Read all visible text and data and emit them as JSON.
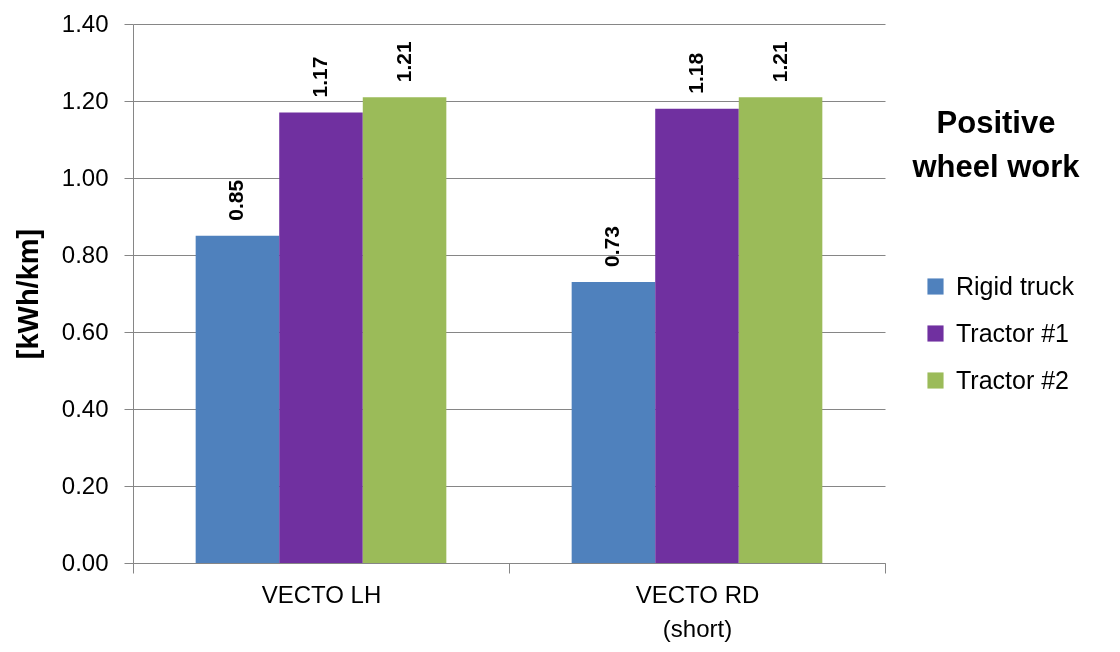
{
  "chart_data": {
    "type": "bar",
    "title": "Positive\nwheel work",
    "ylabel": "[kWh/km]",
    "categories": [
      "VECTO LH",
      "VECTO RD\n(short)"
    ],
    "series": [
      {
        "name": "Rigid truck",
        "color": "#4f81bd",
        "values": [
          0.85,
          0.73
        ]
      },
      {
        "name": "Tractor #1",
        "color": "#7030a0",
        "values": [
          1.17,
          1.18
        ]
      },
      {
        "name": "Tractor #2",
        "color": "#9bbb59",
        "values": [
          1.21,
          1.21
        ]
      }
    ],
    "ylim": [
      0,
      1.4
    ],
    "yticks": [
      {
        "value": 0,
        "label": "0.00"
      },
      {
        "value": 0.2,
        "label": "0.20"
      },
      {
        "value": 0.4,
        "label": "0.40"
      },
      {
        "value": 0.6,
        "label": "0.60"
      },
      {
        "value": 0.8,
        "label": "0.80"
      },
      {
        "value": 1,
        "label": "1.00"
      },
      {
        "value": 1.2,
        "label": "1.20"
      },
      {
        "value": 1.4,
        "label": "1.40"
      }
    ],
    "grid": "y",
    "legend": "right",
    "data_labels": true
  }
}
